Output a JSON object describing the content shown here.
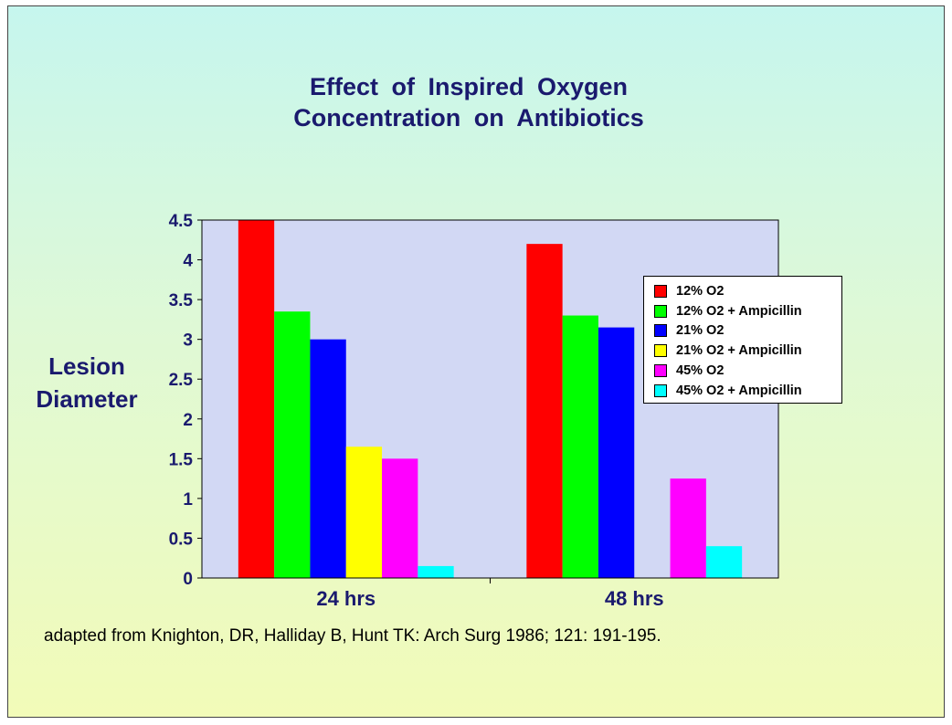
{
  "title_line1": "Effect of Inspired Oxygen",
  "title_line2": "Concentration on Antibiotics",
  "ylabel_line1": "Lesion",
  "ylabel_line2": "Diameter",
  "footnote": "adapted from Knighton, DR, Halliday B, Hunt TK:  Arch Surg 1986; 121: 191-195.",
  "chart_data": {
    "type": "bar",
    "categories": [
      "24 hrs",
      "48 hrs"
    ],
    "ylim": [
      0,
      4.5
    ],
    "yticks": [
      "0",
      "0.5",
      "1",
      "1.5",
      "2",
      "2.5",
      "3",
      "3.5",
      "4",
      "4.5"
    ],
    "legend_position": "right",
    "plot_background": "#d2d8f4",
    "series": [
      {
        "name": "12% O2",
        "color": "#ff0000",
        "values": [
          4.5,
          4.2
        ]
      },
      {
        "name": "12% O2 + Ampicillin",
        "color": "#00ff00",
        "values": [
          3.35,
          3.3
        ]
      },
      {
        "name": "21% O2",
        "color": "#0000ff",
        "values": [
          3.0,
          3.15
        ]
      },
      {
        "name": "21% O2 + Ampicillin",
        "color": "#ffff00",
        "values": [
          1.65,
          0
        ]
      },
      {
        "name": "45% O2",
        "color": "#ff00ff",
        "values": [
          1.5,
          1.25
        ]
      },
      {
        "name": "45% O2 + Ampicillin",
        "color": "#00ffff",
        "values": [
          0.15,
          0.4
        ]
      }
    ]
  }
}
